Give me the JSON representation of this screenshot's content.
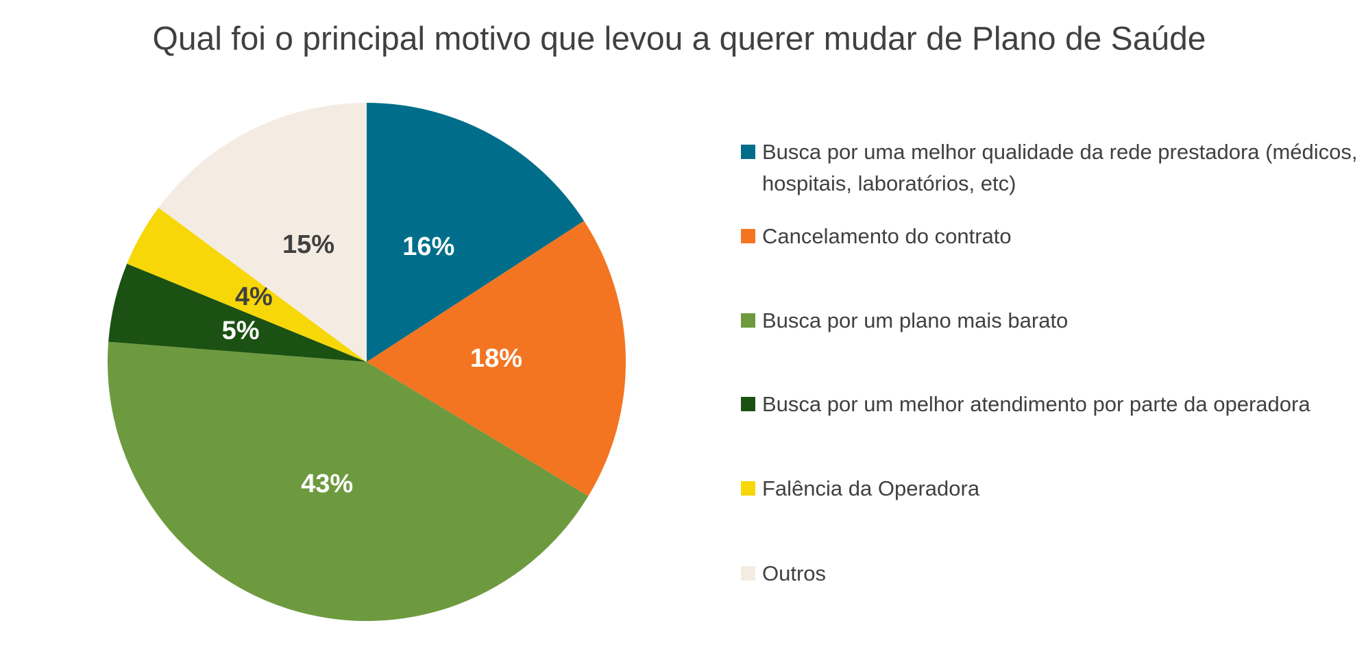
{
  "chart_data": {
    "type": "pie",
    "title": "Qual foi o principal motivo que levou a querer mudar de Plano de Saúde",
    "categories": [
      "Busca por uma melhor qualidade da rede prestadora (médicos, hospitais, laboratórios, etc)",
      "Cancelamento do contrato",
      "Busca por um plano mais barato",
      "Busca por um melhor atendimento por parte da operadora",
      "Falência da Operadora",
      "Outros"
    ],
    "values": [
      16,
      18,
      43,
      5,
      4,
      15
    ],
    "value_labels": [
      "16%",
      "18%",
      "43%",
      "5%",
      "4%",
      "15%"
    ],
    "colors": [
      "#006e8a",
      "#f37521",
      "#6e9a3f",
      "#1b5113",
      "#f7d708",
      "#f4ece2"
    ],
    "legend": "right"
  }
}
